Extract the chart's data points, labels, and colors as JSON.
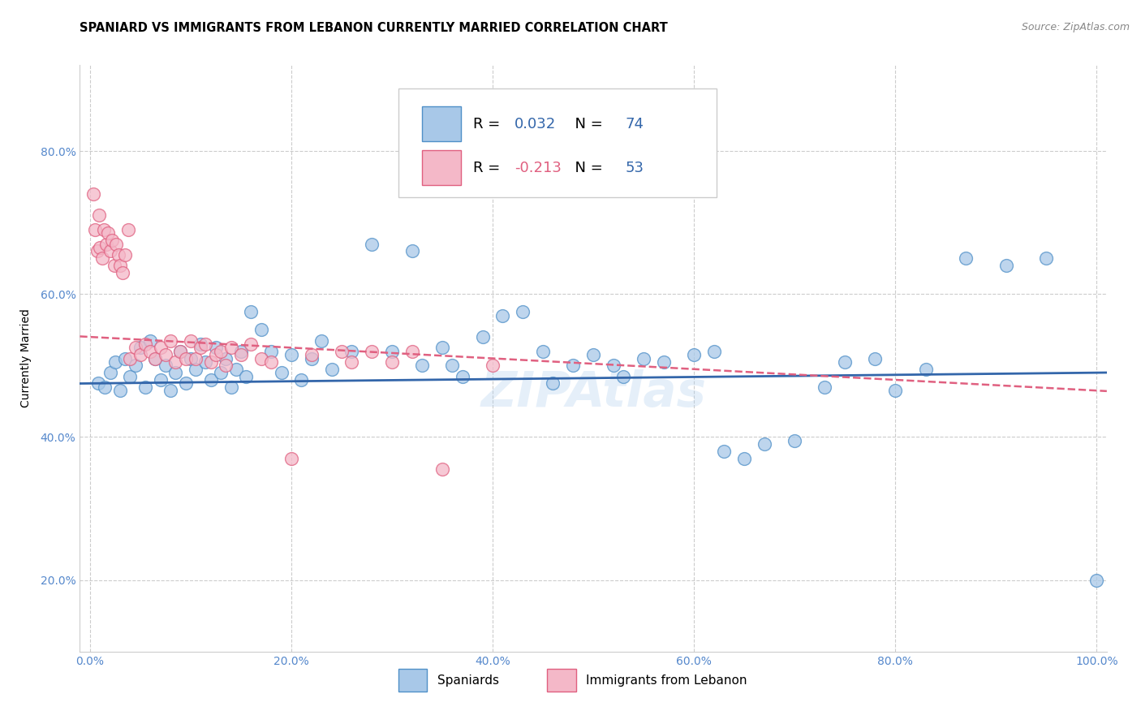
{
  "title": "SPANIARD VS IMMIGRANTS FROM LEBANON CURRENTLY MARRIED CORRELATION CHART",
  "source": "Source: ZipAtlas.com",
  "ylabel": "Currently Married",
  "watermark": "ZIPAtlas",
  "blue_color": "#a8c8e8",
  "pink_color": "#f4b8c8",
  "blue_edge_color": "#5090c8",
  "pink_edge_color": "#e06080",
  "blue_line_color": "#3366aa",
  "pink_line_color": "#e06080",
  "legend_r1": "0.032",
  "legend_n1": "74",
  "legend_r2": "-0.213",
  "legend_n2": "53",
  "blue_scatter": [
    [
      0.8,
      47.5
    ],
    [
      1.5,
      47.0
    ],
    [
      2.0,
      49.0
    ],
    [
      2.5,
      50.5
    ],
    [
      3.0,
      46.5
    ],
    [
      3.5,
      51.0
    ],
    [
      4.0,
      48.5
    ],
    [
      4.5,
      50.0
    ],
    [
      5.0,
      52.5
    ],
    [
      5.5,
      47.0
    ],
    [
      6.0,
      53.5
    ],
    [
      6.5,
      51.0
    ],
    [
      7.0,
      48.0
    ],
    [
      7.5,
      50.0
    ],
    [
      8.0,
      46.5
    ],
    [
      8.5,
      49.0
    ],
    [
      9.0,
      52.0
    ],
    [
      9.5,
      47.5
    ],
    [
      10.0,
      51.0
    ],
    [
      10.5,
      49.5
    ],
    [
      11.0,
      53.0
    ],
    [
      11.5,
      50.5
    ],
    [
      12.0,
      48.0
    ],
    [
      12.5,
      52.5
    ],
    [
      13.0,
      49.0
    ],
    [
      13.5,
      51.0
    ],
    [
      14.0,
      47.0
    ],
    [
      14.5,
      49.5
    ],
    [
      15.0,
      52.0
    ],
    [
      15.5,
      48.5
    ],
    [
      16.0,
      57.5
    ],
    [
      17.0,
      55.0
    ],
    [
      18.0,
      52.0
    ],
    [
      19.0,
      49.0
    ],
    [
      20.0,
      51.5
    ],
    [
      21.0,
      48.0
    ],
    [
      22.0,
      51.0
    ],
    [
      23.0,
      53.5
    ],
    [
      24.0,
      49.5
    ],
    [
      26.0,
      52.0
    ],
    [
      28.0,
      67.0
    ],
    [
      30.0,
      52.0
    ],
    [
      32.0,
      66.0
    ],
    [
      33.0,
      50.0
    ],
    [
      35.0,
      52.5
    ],
    [
      36.0,
      50.0
    ],
    [
      37.0,
      48.5
    ],
    [
      39.0,
      54.0
    ],
    [
      41.0,
      57.0
    ],
    [
      43.0,
      57.5
    ],
    [
      45.0,
      52.0
    ],
    [
      46.0,
      47.5
    ],
    [
      48.0,
      50.0
    ],
    [
      50.0,
      51.5
    ],
    [
      52.0,
      50.0
    ],
    [
      53.0,
      48.5
    ],
    [
      55.0,
      51.0
    ],
    [
      57.0,
      50.5
    ],
    [
      60.0,
      51.5
    ],
    [
      62.0,
      52.0
    ],
    [
      63.0,
      38.0
    ],
    [
      65.0,
      37.0
    ],
    [
      67.0,
      39.0
    ],
    [
      70.0,
      39.5
    ],
    [
      73.0,
      47.0
    ],
    [
      75.0,
      50.5
    ],
    [
      78.0,
      51.0
    ],
    [
      80.0,
      46.5
    ],
    [
      83.0,
      49.5
    ],
    [
      87.0,
      65.0
    ],
    [
      91.0,
      64.0
    ],
    [
      95.0,
      65.0
    ],
    [
      100.0,
      20.0
    ]
  ],
  "pink_scatter": [
    [
      0.3,
      74.0
    ],
    [
      0.5,
      69.0
    ],
    [
      0.7,
      66.0
    ],
    [
      0.9,
      71.0
    ],
    [
      1.0,
      66.5
    ],
    [
      1.2,
      65.0
    ],
    [
      1.4,
      69.0
    ],
    [
      1.6,
      67.0
    ],
    [
      1.8,
      68.5
    ],
    [
      2.0,
      66.0
    ],
    [
      2.2,
      67.5
    ],
    [
      2.4,
      64.0
    ],
    [
      2.6,
      67.0
    ],
    [
      2.8,
      65.5
    ],
    [
      3.0,
      64.0
    ],
    [
      3.2,
      63.0
    ],
    [
      3.5,
      65.5
    ],
    [
      3.8,
      69.0
    ],
    [
      4.0,
      51.0
    ],
    [
      4.5,
      52.5
    ],
    [
      5.0,
      51.5
    ],
    [
      5.5,
      53.0
    ],
    [
      6.0,
      52.0
    ],
    [
      6.5,
      51.0
    ],
    [
      7.0,
      52.5
    ],
    [
      7.5,
      51.5
    ],
    [
      8.0,
      53.5
    ],
    [
      8.5,
      50.5
    ],
    [
      9.0,
      52.0
    ],
    [
      9.5,
      51.0
    ],
    [
      10.0,
      53.5
    ],
    [
      10.5,
      51.0
    ],
    [
      11.0,
      52.5
    ],
    [
      11.5,
      53.0
    ],
    [
      12.0,
      50.5
    ],
    [
      12.5,
      51.5
    ],
    [
      13.0,
      52.0
    ],
    [
      13.5,
      50.0
    ],
    [
      14.0,
      52.5
    ],
    [
      15.0,
      51.5
    ],
    [
      16.0,
      53.0
    ],
    [
      17.0,
      51.0
    ],
    [
      18.0,
      50.5
    ],
    [
      20.0,
      37.0
    ],
    [
      22.0,
      51.5
    ],
    [
      25.0,
      52.0
    ],
    [
      26.0,
      50.5
    ],
    [
      28.0,
      52.0
    ],
    [
      30.0,
      50.5
    ],
    [
      32.0,
      52.0
    ],
    [
      35.0,
      35.5
    ],
    [
      40.0,
      50.0
    ]
  ],
  "xlim": [
    -1,
    101
  ],
  "ylim": [
    10,
    92
  ],
  "xticks": [
    0,
    20,
    40,
    60,
    80,
    100
  ],
  "xticklabels": [
    "0.0%",
    "20.0%",
    "40.0%",
    "60.0%",
    "80.0%",
    "100.0%"
  ],
  "yticks": [
    20,
    40,
    60,
    80
  ],
  "yticklabels": [
    "20.0%",
    "40.0%",
    "60.0%",
    "80.0%"
  ],
  "grid_color": "#cccccc",
  "bg_color": "#ffffff",
  "tick_color": "#5588cc",
  "title_fontsize": 10.5,
  "source_fontsize": 9,
  "axis_label_fontsize": 10,
  "tick_fontsize": 10,
  "legend_fontsize": 13
}
